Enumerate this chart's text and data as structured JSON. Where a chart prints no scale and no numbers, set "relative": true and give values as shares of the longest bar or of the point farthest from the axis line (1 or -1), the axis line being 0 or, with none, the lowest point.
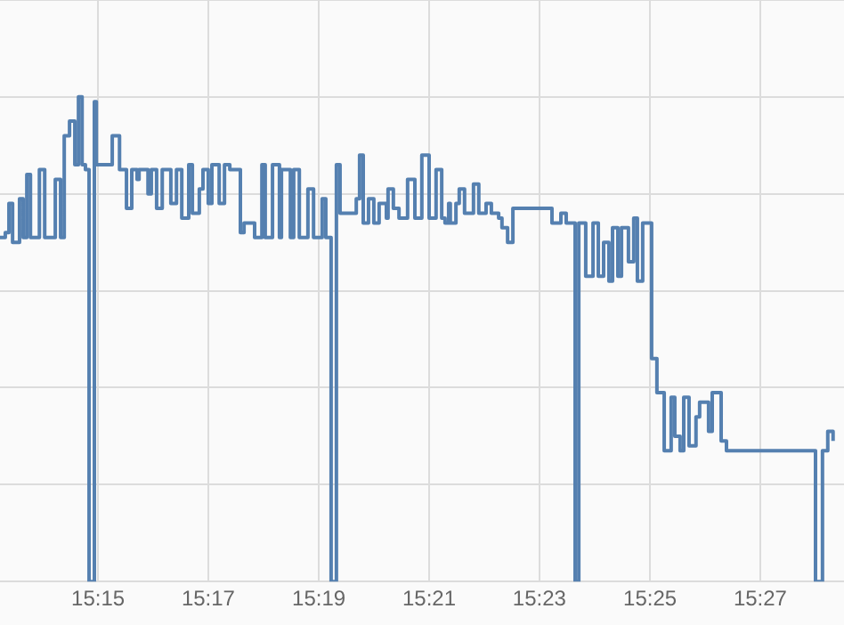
{
  "chart_data": {
    "type": "step",
    "relative": true,
    "grid": true,
    "marker": "none",
    "line_style": "solid",
    "xlim": [
      15.2204,
      15.4753
    ],
    "xticks": [
      {
        "value": 15.25,
        "label": "15:15"
      },
      {
        "value": 15.2833,
        "label": "15:17"
      },
      {
        "value": 15.3167,
        "label": "15:19"
      },
      {
        "value": 15.35,
        "label": "15:21"
      },
      {
        "value": 15.3833,
        "label": "15:23"
      },
      {
        "value": 15.4167,
        "label": "15:25"
      },
      {
        "value": 15.45,
        "label": "15:27"
      }
    ],
    "series": [
      {
        "color": "#5580b0",
        "x": [
          15.2204,
          15.222,
          15.2231,
          15.2242,
          15.2263,
          15.2274,
          15.2285,
          15.2296,
          15.2323,
          15.2339,
          15.2371,
          15.2387,
          15.2398,
          15.2414,
          15.243,
          15.2441,
          15.2452,
          15.2462,
          15.2473,
          15.2489,
          15.2495,
          15.2543,
          15.2565,
          15.2586,
          15.2602,
          15.2618,
          15.2624,
          15.2651,
          15.2661,
          15.2677,
          15.2694,
          15.272,
          15.2737,
          15.2753,
          15.2774,
          15.2785,
          15.2806,
          15.2817,
          15.2833,
          15.2844,
          15.2866,
          15.2882,
          15.2898,
          15.293,
          15.2941,
          15.2973,
          15.2995,
          15.3005,
          15.3027,
          15.3048,
          15.3054,
          15.3081,
          15.3091,
          15.3108,
          15.3134,
          15.3151,
          15.3177,
          15.3188,
          15.3204,
          15.322,
          15.3231,
          15.328,
          15.329,
          15.3301,
          15.3317,
          15.3333,
          15.3349,
          15.3371,
          15.3376,
          15.3392,
          15.3409,
          15.3435,
          15.3457,
          15.3478,
          15.35,
          15.3521,
          15.3538,
          15.3548,
          15.3559,
          15.3564,
          15.3581,
          15.3591,
          15.3607,
          15.3634,
          15.365,
          15.3672,
          15.3688,
          15.371,
          15.372,
          15.3737,
          15.3753,
          15.3871,
          15.3898,
          15.3914,
          15.3941,
          15.3952,
          15.3973,
          15.3995,
          15.4011,
          15.4027,
          15.4043,
          15.4054,
          15.407,
          15.4081,
          15.4102,
          15.4118,
          15.4129,
          15.4145,
          15.4172,
          15.4188,
          15.421,
          15.4231,
          15.4242,
          15.4258,
          15.4269,
          15.4285,
          15.4306,
          15.4317,
          15.4344,
          15.4355,
          15.4382,
          15.4398,
          15.4667,
          15.4688,
          15.4704,
          15.472
        ],
        "values": [
          0.71,
          0.72,
          0.78,
          0.7,
          0.79,
          0.71,
          0.84,
          0.71,
          0.85,
          0.71,
          0.83,
          0.71,
          0.92,
          0.95,
          0.86,
          1.0,
          0.86,
          0.85,
          0,
          0.99,
          0.86,
          0.92,
          0.85,
          0.77,
          0.85,
          0.83,
          0.85,
          0.8,
          0.85,
          0.77,
          0.85,
          0.78,
          0.85,
          0.75,
          0.86,
          0.76,
          0.81,
          0.85,
          0.78,
          0.86,
          0.78,
          0.86,
          0.85,
          0.72,
          0.74,
          0.71,
          0.86,
          0.71,
          0.86,
          0.71,
          0.85,
          0.71,
          0.85,
          0.71,
          0.81,
          0.71,
          0.79,
          0.71,
          0,
          0.86,
          0.76,
          0.79,
          0.88,
          0.74,
          0.79,
          0.74,
          0.78,
          0.75,
          0.81,
          0.77,
          0.75,
          0.83,
          0.75,
          0.88,
          0.75,
          0.85,
          0.75,
          0.74,
          0.78,
          0.74,
          0.78,
          0.81,
          0.76,
          0.82,
          0.76,
          0.78,
          0.76,
          0.75,
          0.73,
          0.7,
          0.77,
          0.74,
          0.76,
          0.74,
          0,
          0.74,
          0.63,
          0.74,
          0.63,
          0.7,
          0.62,
          0.73,
          0.63,
          0.73,
          0.66,
          0.75,
          0.62,
          0.74,
          0.46,
          0.39,
          0.27,
          0.38,
          0.3,
          0.27,
          0.38,
          0.28,
          0.34,
          0.37,
          0.31,
          0.39,
          0.29,
          0.27,
          0,
          0.27,
          0.31,
          0.29
        ]
      }
    ]
  }
}
